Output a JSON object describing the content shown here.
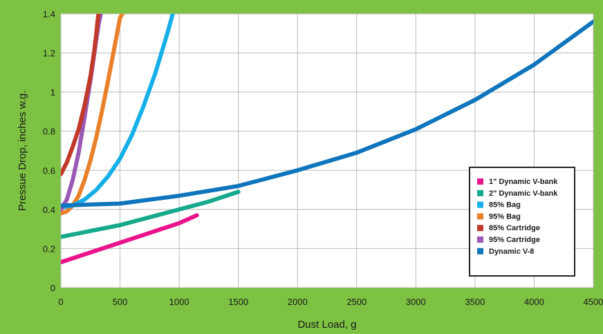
{
  "chart_data": {
    "type": "line",
    "title": "",
    "xlabel": "Dust Load, g",
    "ylabel": "Pressue Drop, inches w.g.",
    "xlim": [
      0,
      4500
    ],
    "ylim": [
      0,
      1.4
    ],
    "grid": true,
    "legend_position": "right",
    "x_ticks": [
      "0",
      "500",
      "1000",
      "1500",
      "2000",
      "2500",
      "3000",
      "3500",
      "4000",
      "4500"
    ],
    "y_ticks": [
      "0",
      "0.2",
      "0.4",
      "0.6",
      "0.8",
      "1",
      "1.2",
      "1.4"
    ],
    "series": [
      {
        "name": "1\" Dynamic V-bank",
        "color": "#e8148a",
        "x": [
          0,
          200,
          400,
          600,
          800,
          1000,
          1150
        ],
        "y": [
          0.13,
          0.17,
          0.21,
          0.25,
          0.29,
          0.33,
          0.37
        ]
      },
      {
        "name": "2\" Dynamic V-bank",
        "color": "#16a98c",
        "x": [
          0,
          250,
          500,
          750,
          1000,
          1250,
          1500
        ],
        "y": [
          0.26,
          0.29,
          0.32,
          0.36,
          0.4,
          0.44,
          0.49
        ]
      },
      {
        "name": "85% Bag",
        "color": "#16b0e8",
        "x": [
          0,
          100,
          200,
          300,
          400,
          500,
          600,
          700,
          800,
          900,
          950
        ],
        "y": [
          0.41,
          0.42,
          0.45,
          0.5,
          0.57,
          0.66,
          0.78,
          0.93,
          1.1,
          1.3,
          1.41
        ]
      },
      {
        "name": "95% Bag",
        "color": "#e9812a",
        "x": [
          0,
          50,
          100,
          150,
          200,
          250,
          300,
          350,
          400,
          450,
          500,
          530
        ],
        "y": [
          0.38,
          0.39,
          0.42,
          0.47,
          0.55,
          0.65,
          0.77,
          0.91,
          1.06,
          1.22,
          1.38,
          1.41
        ]
      },
      {
        "name": "85% Cartridge",
        "color": "#c0392b",
        "x": [
          0,
          50,
          100,
          150,
          200,
          250,
          280,
          300,
          310,
          320
        ],
        "y": [
          0.58,
          0.64,
          0.72,
          0.81,
          0.93,
          1.08,
          1.2,
          1.3,
          1.36,
          1.41
        ]
      },
      {
        "name": "95% Cartridge",
        "color": "#9b59b6",
        "x": [
          0,
          50,
          100,
          150,
          200,
          250,
          300,
          320,
          340
        ],
        "y": [
          0.4,
          0.45,
          0.55,
          0.69,
          0.87,
          1.06,
          1.27,
          1.35,
          1.41
        ]
      },
      {
        "name": "Dynamic V-8",
        "color": "#0f75bc",
        "x": [
          0,
          500,
          1000,
          1500,
          2000,
          2500,
          3000,
          3500,
          4000,
          4500
        ],
        "y": [
          0.42,
          0.43,
          0.47,
          0.52,
          0.6,
          0.69,
          0.81,
          0.96,
          1.14,
          1.36
        ]
      }
    ]
  }
}
